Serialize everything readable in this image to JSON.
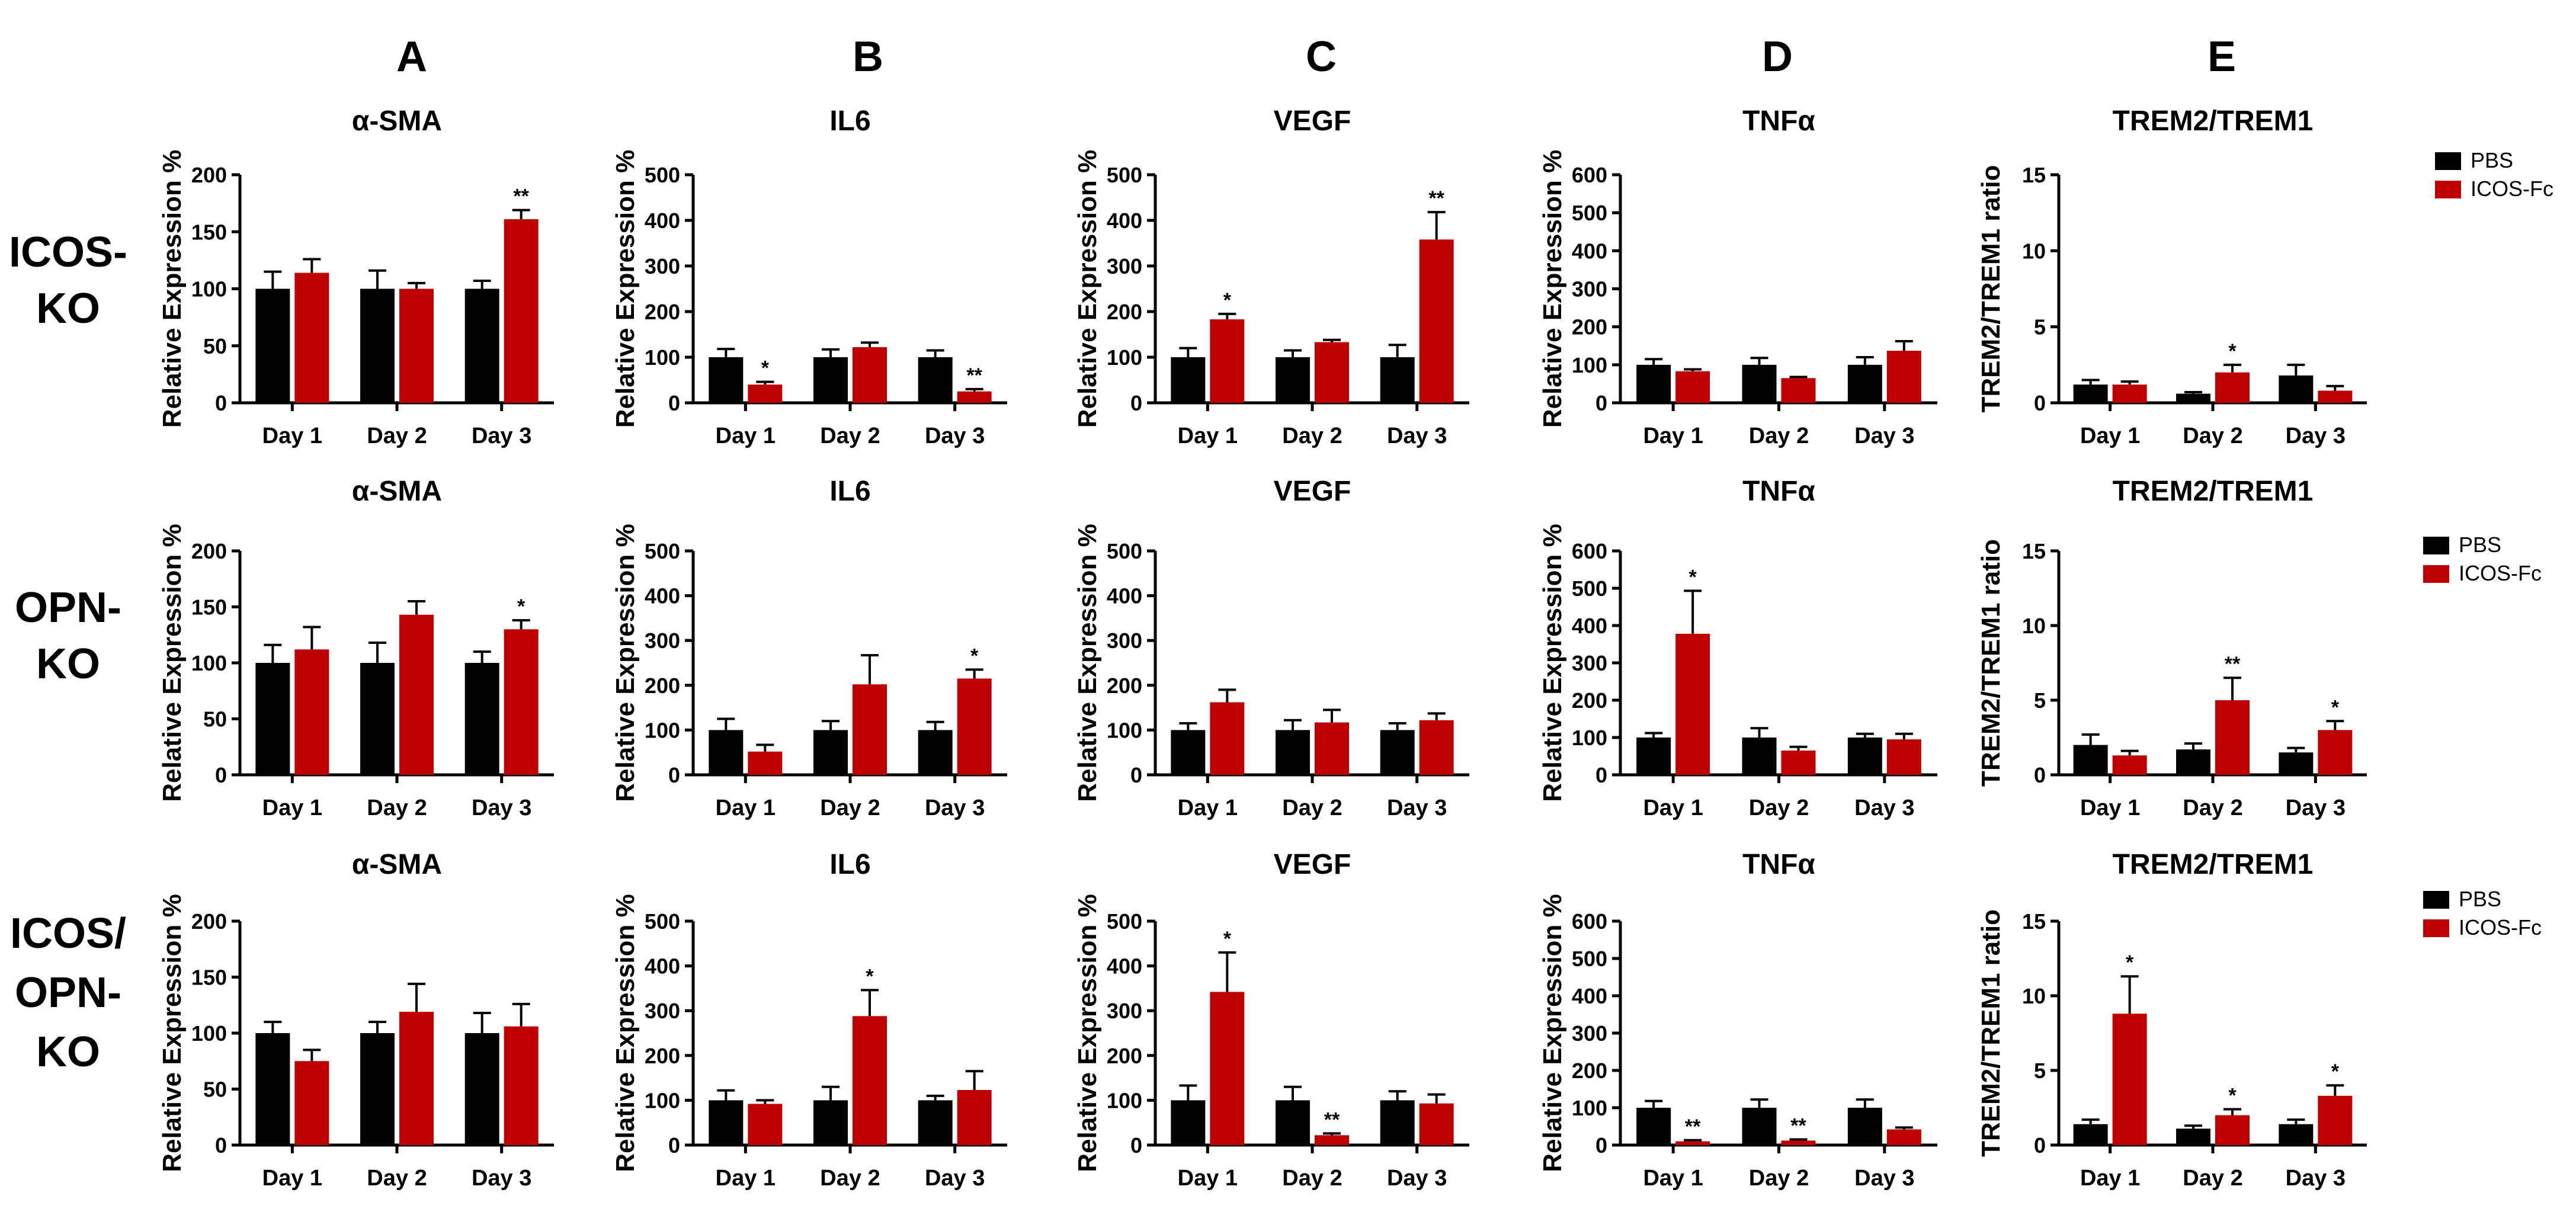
{
  "columns": [
    "A",
    "B",
    "C",
    "D",
    "E"
  ],
  "rows": [
    {
      "label_lines": [
        "ICOS-",
        "KO"
      ]
    },
    {
      "label_lines": [
        "OPN-",
        "KO"
      ]
    },
    {
      "label_lines": [
        "ICOS/",
        "OPN-",
        "KO"
      ]
    }
  ],
  "legend": {
    "items": [
      {
        "name": "PBS",
        "color": "#000000"
      },
      {
        "name": "ICOS-Fc",
        "color": "#c00000"
      }
    ]
  },
  "colors": {
    "pbs": "#000000",
    "icos_fc": "#c00000"
  },
  "chart_data": [
    {
      "type": "bar",
      "title": "α-SMA",
      "ylabel": "Relative Expression %",
      "xlabel": "",
      "categories": [
        "Day 1",
        "Day 2",
        "Day 3"
      ],
      "ylim": [
        0,
        200
      ],
      "yticks": [
        0,
        50,
        100,
        150,
        200
      ],
      "series": [
        {
          "name": "PBS",
          "values": [
            100,
            100,
            100
          ],
          "errors": [
            15,
            16,
            7
          ]
        },
        {
          "name": "ICOS-Fc",
          "values": [
            114,
            100,
            161
          ],
          "errors": [
            12,
            5,
            8
          ]
        }
      ],
      "annotations": [
        "",
        "",
        "",
        "",
        "",
        "**"
      ]
    },
    {
      "type": "bar",
      "title": "IL6",
      "ylabel": "Relative Expression %",
      "xlabel": "",
      "categories": [
        "Day 1",
        "Day 2",
        "Day 3"
      ],
      "ylim": [
        0,
        500
      ],
      "yticks": [
        0,
        100,
        200,
        300,
        400,
        500
      ],
      "series": [
        {
          "name": "PBS",
          "values": [
            100,
            100,
            100
          ],
          "errors": [
            18,
            17,
            15
          ]
        },
        {
          "name": "ICOS-Fc",
          "values": [
            40,
            122,
            25
          ],
          "errors": [
            6,
            10,
            5
          ]
        }
      ],
      "annotations": [
        "",
        "*",
        "",
        "",
        "",
        "**"
      ]
    },
    {
      "type": "bar",
      "title": "VEGF",
      "ylabel": "Relative Expression %",
      "xlabel": "",
      "categories": [
        "Day 1",
        "Day 2",
        "Day 3"
      ],
      "ylim": [
        0,
        500
      ],
      "yticks": [
        0,
        100,
        200,
        300,
        400,
        500
      ],
      "series": [
        {
          "name": "PBS",
          "values": [
            100,
            100,
            100
          ],
          "errors": [
            20,
            15,
            27
          ]
        },
        {
          "name": "ICOS-Fc",
          "values": [
            183,
            133,
            358
          ],
          "errors": [
            12,
            5,
            60
          ]
        }
      ],
      "annotations": [
        "",
        "*",
        "",
        "",
        "",
        "**"
      ]
    },
    {
      "type": "bar",
      "title": "TNFα",
      "ylabel": "Relative Expression %",
      "xlabel": "",
      "categories": [
        "Day 1",
        "Day 2",
        "Day 3"
      ],
      "ylim": [
        0,
        600
      ],
      "yticks": [
        0,
        100,
        200,
        300,
        400,
        500,
        600
      ],
      "series": [
        {
          "name": "PBS",
          "values": [
            100,
            100,
            100
          ],
          "errors": [
            15,
            18,
            20
          ]
        },
        {
          "name": "ICOS-Fc",
          "values": [
            83,
            65,
            137
          ],
          "errors": [
            5,
            3,
            25
          ]
        }
      ],
      "annotations": [
        "",
        "",
        "",
        "",
        "",
        ""
      ]
    },
    {
      "type": "bar",
      "title": "TREM2/TREM1",
      "ylabel": "TREM2/TREM1 ratio",
      "xlabel": "",
      "categories": [
        "Day 1",
        "Day 2",
        "Day 3"
      ],
      "ylim": [
        0,
        15
      ],
      "yticks": [
        0,
        5,
        10,
        15
      ],
      "series": [
        {
          "name": "PBS",
          "values": [
            1.2,
            0.6,
            1.8
          ],
          "errors": [
            0.3,
            0.1,
            0.7
          ]
        },
        {
          "name": "ICOS-Fc",
          "values": [
            1.2,
            2.0,
            0.8
          ],
          "errors": [
            0.2,
            0.5,
            0.3
          ]
        }
      ],
      "annotations": [
        "",
        "",
        "",
        "*",
        "",
        ""
      ]
    },
    {
      "type": "bar",
      "title": "α-SMA",
      "ylabel": "Relative Expression %",
      "xlabel": "",
      "categories": [
        "Day 1",
        "Day 2",
        "Day 3"
      ],
      "ylim": [
        0,
        200
      ],
      "yticks": [
        0,
        50,
        100,
        150,
        200
      ],
      "series": [
        {
          "name": "PBS",
          "values": [
            100,
            100,
            100
          ],
          "errors": [
            16,
            18,
            10
          ]
        },
        {
          "name": "ICOS-Fc",
          "values": [
            112,
            143,
            130
          ],
          "errors": [
            20,
            12,
            8
          ]
        }
      ],
      "annotations": [
        "",
        "",
        "",
        "",
        "",
        "*"
      ]
    },
    {
      "type": "bar",
      "title": "IL6",
      "ylabel": "Relative Expression %",
      "xlabel": "",
      "categories": [
        "Day 1",
        "Day 2",
        "Day 3"
      ],
      "ylim": [
        0,
        500
      ],
      "yticks": [
        0,
        100,
        200,
        300,
        400,
        500
      ],
      "series": [
        {
          "name": "PBS",
          "values": [
            100,
            100,
            100
          ],
          "errors": [
            25,
            20,
            18
          ]
        },
        {
          "name": "ICOS-Fc",
          "values": [
            52,
            202,
            215
          ],
          "errors": [
            15,
            65,
            20
          ]
        }
      ],
      "annotations": [
        "",
        "",
        "",
        "",
        "",
        "*"
      ]
    },
    {
      "type": "bar",
      "title": "VEGF",
      "ylabel": "Relative Expression %",
      "xlabel": "",
      "categories": [
        "Day 1",
        "Day 2",
        "Day 3"
      ],
      "ylim": [
        0,
        500
      ],
      "yticks": [
        0,
        100,
        200,
        300,
        400,
        500
      ],
      "series": [
        {
          "name": "PBS",
          "values": [
            100,
            100,
            100
          ],
          "errors": [
            15,
            22,
            15
          ]
        },
        {
          "name": "ICOS-Fc",
          "values": [
            162,
            117,
            122
          ],
          "errors": [
            28,
            28,
            15
          ]
        }
      ],
      "annotations": [
        "",
        "",
        "",
        "",
        "",
        ""
      ]
    },
    {
      "type": "bar",
      "title": "TNFα",
      "ylabel": "Relative Expression %",
      "xlabel": "",
      "categories": [
        "Day 1",
        "Day 2",
        "Day 3"
      ],
      "ylim": [
        0,
        600
      ],
      "yticks": [
        0,
        100,
        200,
        300,
        400,
        500,
        600
      ],
      "series": [
        {
          "name": "PBS",
          "values": [
            100,
            100,
            100
          ],
          "errors": [
            12,
            25,
            10
          ]
        },
        {
          "name": "ICOS-Fc",
          "values": [
            378,
            65,
            95
          ],
          "errors": [
            115,
            10,
            15
          ]
        }
      ],
      "annotations": [
        "",
        "*",
        "",
        "",
        "",
        ""
      ]
    },
    {
      "type": "bar",
      "title": "TREM2/TREM1",
      "ylabel": "TREM2/TREM1 ratio",
      "xlabel": "",
      "categories": [
        "Day 1",
        "Day 2",
        "Day 3"
      ],
      "ylim": [
        0,
        15
      ],
      "yticks": [
        0,
        5,
        10,
        15
      ],
      "series": [
        {
          "name": "PBS",
          "values": [
            2.0,
            1.7,
            1.5
          ],
          "errors": [
            0.7,
            0.4,
            0.3
          ]
        },
        {
          "name": "ICOS-Fc",
          "values": [
            1.3,
            5.0,
            3.0
          ],
          "errors": [
            0.3,
            1.5,
            0.6
          ]
        }
      ],
      "annotations": [
        "",
        "",
        "",
        "**",
        "",
        "*"
      ]
    },
    {
      "type": "bar",
      "title": "α-SMA",
      "ylabel": "Relative Expression %",
      "xlabel": "",
      "categories": [
        "Day 1",
        "Day 2",
        "Day 3"
      ],
      "ylim": [
        0,
        200
      ],
      "yticks": [
        0,
        50,
        100,
        150,
        200
      ],
      "series": [
        {
          "name": "PBS",
          "values": [
            100,
            100,
            100
          ],
          "errors": [
            10,
            10,
            18
          ]
        },
        {
          "name": "ICOS-Fc",
          "values": [
            75,
            119,
            106
          ],
          "errors": [
            10,
            25,
            20
          ]
        }
      ],
      "annotations": [
        "",
        "",
        "",
        "",
        "",
        ""
      ]
    },
    {
      "type": "bar",
      "title": "IL6",
      "ylabel": "Relative Expression %",
      "xlabel": "",
      "categories": [
        "Day 1",
        "Day 2",
        "Day 3"
      ],
      "ylim": [
        0,
        500
      ],
      "yticks": [
        0,
        100,
        200,
        300,
        400,
        500
      ],
      "series": [
        {
          "name": "PBS",
          "values": [
            100,
            100,
            100
          ],
          "errors": [
            22,
            30,
            10
          ]
        },
        {
          "name": "ICOS-Fc",
          "values": [
            92,
            288,
            123
          ],
          "errors": [
            8,
            58,
            42
          ]
        }
      ],
      "annotations": [
        "",
        "",
        "",
        "*",
        "",
        ""
      ]
    },
    {
      "type": "bar",
      "title": "VEGF",
      "ylabel": "Relative Expression %",
      "xlabel": "",
      "categories": [
        "Day 1",
        "Day 2",
        "Day 3"
      ],
      "ylim": [
        0,
        500
      ],
      "yticks": [
        0,
        100,
        200,
        300,
        400,
        500
      ],
      "series": [
        {
          "name": "PBS",
          "values": [
            100,
            100,
            100
          ],
          "errors": [
            33,
            30,
            20
          ]
        },
        {
          "name": "ICOS-Fc",
          "values": [
            342,
            22,
            93
          ],
          "errors": [
            88,
            4,
            20
          ]
        }
      ],
      "annotations": [
        "",
        "*",
        "",
        "**",
        "",
        ""
      ]
    },
    {
      "type": "bar",
      "title": "TNFα",
      "ylabel": "Relative Expression %",
      "xlabel": "",
      "categories": [
        "Day 1",
        "Day 2",
        "Day 3"
      ],
      "ylim": [
        0,
        600
      ],
      "yticks": [
        0,
        100,
        200,
        300,
        400,
        500,
        600
      ],
      "series": [
        {
          "name": "PBS",
          "values": [
            100,
            100,
            100
          ],
          "errors": [
            18,
            22,
            22
          ]
        },
        {
          "name": "ICOS-Fc",
          "values": [
            10,
            12,
            42
          ],
          "errors": [
            3,
            3,
            5
          ]
        }
      ],
      "annotations": [
        "",
        "**",
        "",
        "**",
        "",
        ""
      ]
    },
    {
      "type": "bar",
      "title": "TREM2/TREM1",
      "ylabel": "TREM2/TREM1 ratio",
      "xlabel": "",
      "categories": [
        "Day 1",
        "Day 2",
        "Day 3"
      ],
      "ylim": [
        0,
        15
      ],
      "yticks": [
        0,
        5,
        10,
        15
      ],
      "series": [
        {
          "name": "PBS",
          "values": [
            1.4,
            1.1,
            1.4
          ],
          "errors": [
            0.3,
            0.2,
            0.3
          ]
        },
        {
          "name": "ICOS-Fc",
          "values": [
            8.8,
            2.0,
            3.3
          ],
          "errors": [
            2.5,
            0.4,
            0.7
          ]
        }
      ],
      "annotations": [
        "",
        "*",
        "",
        "*",
        "",
        "*"
      ]
    }
  ]
}
